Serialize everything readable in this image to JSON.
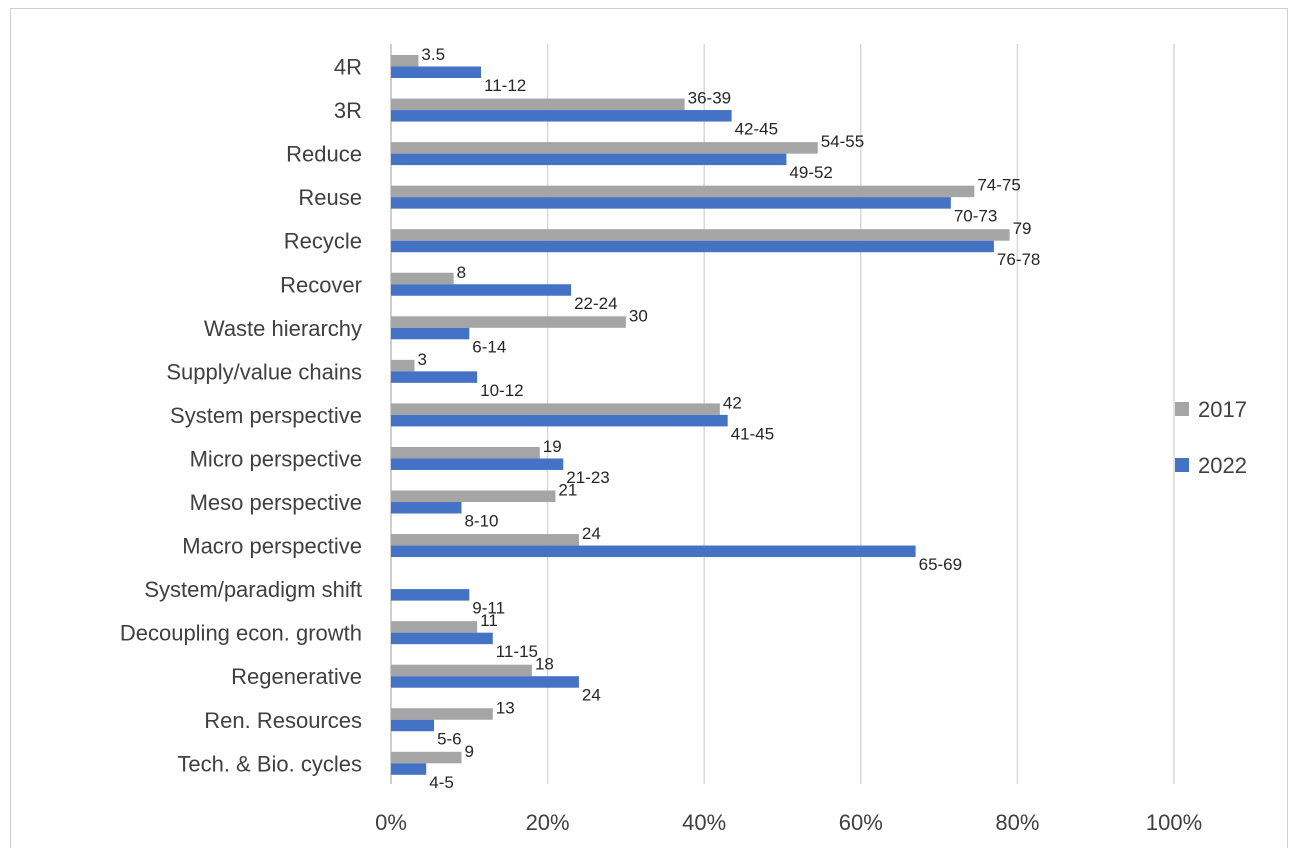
{
  "chart_data": {
    "type": "bar",
    "orientation": "horizontal",
    "categories": [
      "4R",
      "3R",
      "Reduce",
      "Reuse",
      "Recycle",
      "Recover",
      "Waste hierarchy",
      "Supply/value chains",
      "System perspective",
      "Micro perspective",
      "Meso perspective",
      "Macro perspective",
      "System/paradigm shift",
      "Decoupling econ. growth",
      "Regenerative",
      "Ren. Resources",
      "Tech. &  Bio. cycles"
    ],
    "series": [
      {
        "name": "2017",
        "color": "#a5a5a5",
        "values": [
          3.5,
          37.5,
          54.5,
          74.5,
          79,
          8,
          30,
          3,
          42,
          19,
          21,
          24,
          null,
          11,
          18,
          13,
          9
        ],
        "labels": [
          "3.5",
          "36-39",
          "54-55",
          "74-75",
          "79",
          "8",
          "30",
          "3",
          "42",
          "19",
          "21",
          "24",
          "",
          "11",
          "18",
          "13",
          "9"
        ]
      },
      {
        "name": "2022",
        "color": "#4472c4",
        "values": [
          11.5,
          43.5,
          50.5,
          71.5,
          77,
          23,
          10,
          11,
          43,
          22,
          9,
          67,
          10,
          13,
          24,
          5.5,
          4.5
        ],
        "labels": [
          "11-12",
          "42-45",
          "49-52",
          "70-73",
          "76-78",
          "22-24",
          "6-14",
          "10-12",
          "41-45",
          "21-23",
          "8-10",
          "65-69",
          "9-11",
          "11-15",
          "24",
          "5-6",
          "4-5"
        ]
      }
    ],
    "xlim": [
      0,
      100
    ],
    "xticks": [
      "0%",
      "20%",
      "40%",
      "60%",
      "80%",
      "100%"
    ],
    "grid": true,
    "legend": "right"
  }
}
